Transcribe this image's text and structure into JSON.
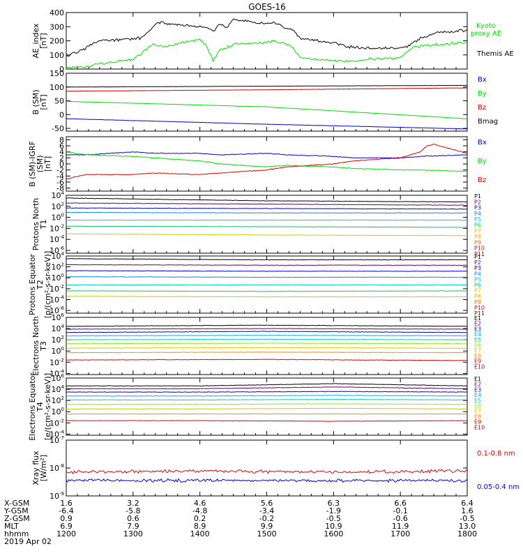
{
  "title": "GOES-16",
  "chart_data": [
    {
      "type": "line",
      "ylabel": "AE_index [nT]",
      "ylim": [
        0,
        400
      ],
      "yticks": [
        "0",
        "100",
        "200",
        "300",
        "400"
      ],
      "legend": [
        {
          "name": "Kyoto proxy AE",
          "color": "#00dd00"
        },
        {
          "name": "Themis AE",
          "color": "#000000"
        }
      ],
      "series": [
        {
          "name": "Themis AE",
          "color": "#000000",
          "x": [
            1200,
            1210,
            1220,
            1230,
            1240,
            1250,
            1300,
            1310,
            1320,
            1330,
            1340,
            1350,
            1400,
            1410,
            1420,
            1430,
            1440,
            1450,
            1500,
            1510,
            1520,
            1530,
            1540,
            1550,
            1600,
            1610,
            1620,
            1630,
            1640,
            1650,
            1700,
            1710,
            1720,
            1730,
            1740,
            1750,
            1800
          ],
          "y": [
            90,
            115,
            125,
            150,
            180,
            200,
            215,
            220,
            245,
            300,
            330,
            320,
            300,
            295,
            270,
            320,
            290,
            350,
            320,
            330,
            310,
            290,
            270,
            215,
            185,
            175,
            160,
            155,
            150,
            150,
            150,
            160,
            190,
            220,
            230,
            255,
            275
          ]
        },
        {
          "name": "Kyoto proxy AE",
          "color": "#00dd00",
          "x": [
            1200,
            1210,
            1220,
            1230,
            1240,
            1250,
            1300,
            1310,
            1320,
            1330,
            1340,
            1350,
            1400,
            1410,
            1420,
            1430,
            1440,
            1450,
            1500,
            1510,
            1520,
            1530,
            1540,
            1550,
            1600,
            1610,
            1620,
            1630,
            1640,
            1650,
            1700,
            1710,
            1720,
            1730,
            1740,
            1750,
            1800
          ],
          "y": [
            10,
            15,
            15,
            20,
            25,
            40,
            70,
            100,
            140,
            175,
            160,
            165,
            210,
            160,
            60,
            140,
            150,
            175,
            190,
            200,
            185,
            180,
            150,
            80,
            60,
            60,
            55,
            60,
            60,
            70,
            80,
            120,
            160,
            160,
            165,
            170,
            190
          ]
        }
      ]
    },
    {
      "type": "line",
      "ylabel": "B (SM) [nT]",
      "ylim": [
        -60,
        150
      ],
      "yticks": [
        "-50",
        "0",
        "50",
        "100",
        "150"
      ],
      "legend": [
        {
          "name": "Bx",
          "color": "#0000cc"
        },
        {
          "name": "By",
          "color": "#00dd00"
        },
        {
          "name": "Bz",
          "color": "#dd0000"
        },
        {
          "name": "Bmag",
          "color": "#000000"
        }
      ],
      "series": [
        {
          "name": "Bmag",
          "color": "#000000",
          "x": [
            1200,
            1500,
            1800
          ],
          "y": [
            100,
            103,
            106
          ]
        },
        {
          "name": "Bz",
          "color": "#dd0000",
          "x": [
            1200,
            1500,
            1800
          ],
          "y": [
            85,
            90,
            97
          ]
        },
        {
          "name": "By",
          "color": "#00dd00",
          "x": [
            1200,
            1500,
            1800
          ],
          "y": [
            48,
            28,
            -15
          ]
        },
        {
          "name": "Bx",
          "color": "#0000cc",
          "x": [
            1200,
            1500,
            1800
          ],
          "y": [
            -15,
            -35,
            -52
          ]
        }
      ]
    },
    {
      "type": "line",
      "ylabel": "B (SM)-IGRF (SM) [nT]",
      "ylim": [
        -9,
        9
      ],
      "yticks": [
        "-8",
        "-6",
        "-4",
        "-2",
        "0",
        "2",
        "4",
        "6",
        "8"
      ],
      "legend": [
        {
          "name": "Bx",
          "color": "#0000cc"
        },
        {
          "name": "By",
          "color": "#00dd00"
        },
        {
          "name": "Bz",
          "color": "#dd0000"
        }
      ],
      "series": [
        {
          "name": "Bx",
          "color": "#0000cc",
          "x": [
            1200,
            1230,
            1300,
            1330,
            1400,
            1430,
            1500,
            1530,
            1600,
            1630,
            1700,
            1730,
            1800
          ],
          "y": [
            3,
            3,
            4,
            3.5,
            3.5,
            3,
            3.5,
            3,
            2.5,
            2,
            2,
            2.5,
            3
          ]
        },
        {
          "name": "By",
          "color": "#00dd00",
          "x": [
            1200,
            1230,
            1300,
            1330,
            1400,
            1430,
            1500,
            1530,
            1600,
            1630,
            1700,
            1730,
            1800
          ],
          "y": [
            4,
            3,
            2.5,
            2,
            1,
            0,
            -1,
            -0.5,
            -1,
            -1.5,
            -2,
            -2,
            -2.5
          ]
        },
        {
          "name": "Bz",
          "color": "#dd0000",
          "x": [
            1200,
            1230,
            1300,
            1330,
            1400,
            1430,
            1500,
            1530,
            1600,
            1630,
            1700,
            1730,
            1740,
            1750,
            1800
          ],
          "y": [
            -5,
            -3.5,
            -3.5,
            -3,
            -3.5,
            -3,
            -2,
            -1,
            0,
            1,
            2,
            4,
            6,
            6.5,
            3.5
          ]
        }
      ]
    },
    {
      "type": "line",
      "ylabel": "Protons North T1",
      "ylog": true,
      "ylim": [
        -6.5,
        4
      ],
      "yticks": [
        "10^4",
        "10^2",
        "10^0",
        "10^-2",
        "10^-4",
        "10^-6"
      ],
      "legend": [
        {
          "name": "P1",
          "color": "#000000"
        },
        {
          "name": "P2",
          "color": "#660066"
        },
        {
          "name": "P3",
          "color": "#0000cc"
        },
        {
          "name": "P4",
          "color": "#0088ff"
        },
        {
          "name": "P5",
          "color": "#00cccc"
        },
        {
          "name": "P6",
          "color": "#00cc66"
        },
        {
          "name": "P7",
          "color": "#cccc00"
        },
        {
          "name": "P8",
          "color": "#ffaa00"
        },
        {
          "name": "P9",
          "color": "#ff6600"
        },
        {
          "name": "P10",
          "color": "#dd0000"
        },
        {
          "name": "P11",
          "color": "#aa0000"
        }
      ],
      "series": [
        {
          "name": "P1",
          "log10_levels": [
            3.5,
            3.0,
            2.8
          ]
        },
        {
          "name": "P2",
          "log10_levels": [
            2.6,
            2.4,
            2.2
          ]
        },
        {
          "name": "P3",
          "log10_levels": [
            1.7,
            1.6,
            1.5
          ]
        },
        {
          "name": "P4",
          "log10_levels": [
            0.9,
            0.8,
            0.8
          ]
        },
        {
          "name": "P5",
          "log10_levels": [
            -0.5,
            -0.5,
            -0.5
          ]
        },
        {
          "name": "P6",
          "log10_levels": [
            -1.6,
            -1.7,
            -1.8
          ]
        },
        {
          "name": "P7",
          "log10_levels": [
            -3.0,
            -3.2,
            -3.3
          ]
        }
      ]
    },
    {
      "type": "line",
      "ylabel": "Protons Equator T2 [p/(cm²-s-sr-keV)]",
      "ylog": true,
      "ylim": [
        -6.5,
        4
      ],
      "yticks": [
        "10^4",
        "10^2",
        "10^0",
        "10^-2",
        "10^-4",
        "10^-6"
      ],
      "legend": [
        {
          "name": "P1",
          "color": "#000000"
        },
        {
          "name": "P2",
          "color": "#660066"
        },
        {
          "name": "P3",
          "color": "#0000cc"
        },
        {
          "name": "P4",
          "color": "#0088ff"
        },
        {
          "name": "P5",
          "color": "#00cccc"
        },
        {
          "name": "P6",
          "color": "#00cc66"
        },
        {
          "name": "P7",
          "color": "#cccc00"
        },
        {
          "name": "P8",
          "color": "#ffaa00"
        },
        {
          "name": "P9",
          "color": "#ff6600"
        },
        {
          "name": "P10",
          "color": "#dd0000"
        },
        {
          "name": "P11",
          "color": "#aa0000"
        }
      ],
      "series": [
        {
          "name": "P1",
          "log10_levels": [
            3.5,
            3.3,
            3.3
          ]
        },
        {
          "name": "P2",
          "log10_levels": [
            2.4,
            2.3,
            2.3
          ]
        },
        {
          "name": "P3",
          "log10_levels": [
            1.3,
            1.2,
            1.2
          ]
        },
        {
          "name": "P4",
          "log10_levels": [
            0.2,
            0.1,
            0.1
          ]
        },
        {
          "name": "P5",
          "log10_levels": [
            -1.3,
            -1.3,
            -1.3
          ]
        },
        {
          "name": "P6",
          "log10_levels": [
            -2.4,
            -2.5,
            -2.4
          ]
        },
        {
          "name": "P7",
          "log10_levels": [
            -3.4,
            -3.5,
            -3.5
          ]
        }
      ]
    },
    {
      "type": "line",
      "ylabel": "Electrons North T3",
      "ylog": true,
      "ylim": [
        -4.2,
        6
      ],
      "yticks": [
        "10^6",
        "10^4",
        "10^2",
        "10^0",
        "10^-2",
        "10^-4"
      ],
      "legend": [
        {
          "name": "E1",
          "color": "#000000"
        },
        {
          "name": "E2",
          "color": "#660066"
        },
        {
          "name": "E3",
          "color": "#0000cc"
        },
        {
          "name": "E4",
          "color": "#00aaff"
        },
        {
          "name": "E5",
          "color": "#00cccc"
        },
        {
          "name": "E6",
          "color": "#88ee00"
        },
        {
          "name": "E7",
          "color": "#cccc00"
        },
        {
          "name": "E8",
          "color": "#ff8800"
        },
        {
          "name": "E9",
          "color": "#dd0000"
        },
        {
          "name": "E10",
          "color": "#aa0000"
        }
      ],
      "series": [
        {
          "name": "E1",
          "log10_levels": [
            4.4,
            4.6,
            4.4
          ]
        },
        {
          "name": "E2",
          "log10_levels": [
            3.9,
            4.0,
            3.9
          ]
        },
        {
          "name": "E3",
          "log10_levels": [
            3.3,
            3.5,
            3.3
          ]
        },
        {
          "name": "E4",
          "log10_levels": [
            2.7,
            2.8,
            2.7
          ]
        },
        {
          "name": "E5",
          "log10_levels": [
            2.0,
            2.1,
            2.0
          ]
        },
        {
          "name": "E6",
          "log10_levels": [
            1.3,
            1.4,
            1.3
          ]
        },
        {
          "name": "E7",
          "log10_levels": [
            0.5,
            0.6,
            0.5
          ]
        },
        {
          "name": "E8",
          "log10_levels": [
            -0.3,
            -0.2,
            -0.3
          ]
        },
        {
          "name": "E9",
          "log10_levels": [
            -1.6,
            -1.5,
            -1.7
          ]
        }
      ]
    },
    {
      "type": "line",
      "ylabel": "Electrons Equator T4 [e/(cm²-s-sr-keV)]",
      "ylog": true,
      "ylim": [
        -4.2,
        6
      ],
      "yticks": [
        "10^6",
        "10^4",
        "10^2",
        "10^0",
        "10^-2",
        "10^-4"
      ],
      "legend": [
        {
          "name": "E1",
          "color": "#000000"
        },
        {
          "name": "E2",
          "color": "#660066"
        },
        {
          "name": "E3",
          "color": "#0000cc"
        },
        {
          "name": "E4",
          "color": "#00aaff"
        },
        {
          "name": "E5",
          "color": "#00cccc"
        },
        {
          "name": "E6",
          "color": "#88ee00"
        },
        {
          "name": "E7",
          "color": "#cccc00"
        },
        {
          "name": "E8",
          "color": "#ff8800"
        },
        {
          "name": "E9",
          "color": "#dd0000"
        },
        {
          "name": "E10",
          "color": "#aa0000"
        }
      ],
      "series": [
        {
          "name": "E1",
          "log10_levels": [
            4.6,
            4.6,
            5.0,
            4.6
          ]
        },
        {
          "name": "E2",
          "log10_levels": [
            4.1,
            4.1,
            4.4,
            4.1
          ]
        },
        {
          "name": "E3",
          "log10_levels": [
            3.5,
            3.5,
            3.6,
            3.5
          ]
        },
        {
          "name": "E4",
          "log10_levels": [
            2.8,
            2.8,
            2.9,
            2.8
          ]
        },
        {
          "name": "E5",
          "log10_levels": [
            2.1,
            2.1,
            2.2,
            2.1
          ]
        },
        {
          "name": "E6",
          "log10_levels": [
            1.3,
            1.3,
            1.4,
            1.3
          ]
        },
        {
          "name": "E7",
          "log10_levels": [
            0.5,
            0.5,
            0.6,
            0.5
          ]
        },
        {
          "name": "E8",
          "log10_levels": [
            -0.4,
            -0.4,
            -0.4,
            -0.4
          ]
        },
        {
          "name": "E9",
          "log10_levels": [
            -1.6,
            -1.6,
            -1.7,
            -1.6
          ]
        }
      ]
    },
    {
      "type": "line",
      "ylabel": "Xray flux [W/m²]",
      "ylog": true,
      "ylim": [
        -9,
        -7
      ],
      "yticks": [
        "10^-7",
        "10^-8",
        "10^-9"
      ],
      "legend": [
        {
          "name": "0.1-0.8 nm",
          "color": "#dd0000"
        },
        {
          "name": "0.05-0.4 nm",
          "color": "#0000cc"
        }
      ],
      "series": [
        {
          "name": "0.1-0.8 nm",
          "log10_levels": [
            -8.15,
            -8.1,
            -8.15,
            -8.1
          ]
        },
        {
          "name": "0.05-0.4 nm",
          "log10_levels": [
            -8.45,
            -8.45,
            -8.45,
            -8.45
          ]
        }
      ]
    }
  ],
  "xaxis": {
    "xlim": [
      1200,
      1800
    ],
    "xticks": [
      1200,
      1300,
      1400,
      1500,
      1600,
      1700,
      1800
    ],
    "rows": [
      {
        "label": "X-GSM",
        "values": [
          "1.6",
          "3.2",
          "4.6",
          "5.6",
          "6.3",
          "6.6",
          "6.4"
        ]
      },
      {
        "label": "Y-GSM",
        "values": [
          "-6.4",
          "-5.8",
          "-4.8",
          "-3.4",
          "-1.9",
          "-0.1",
          "1.6"
        ]
      },
      {
        "label": "Z-GSM",
        "values": [
          "0.9",
          "0.6",
          "0.2",
          "-0.2",
          "-0.5",
          "-0.6",
          "-0.5"
        ]
      },
      {
        "label": "MLT",
        "values": [
          "6.9",
          "7.9",
          "8.9",
          "9.9",
          "10.9",
          "11.9",
          "13.0"
        ]
      },
      {
        "label": "hhmm",
        "values": [
          "1200",
          "1300",
          "1400",
          "1500",
          "1600",
          "1700",
          "1800"
        ]
      }
    ],
    "date": "2019 Apr 02"
  }
}
